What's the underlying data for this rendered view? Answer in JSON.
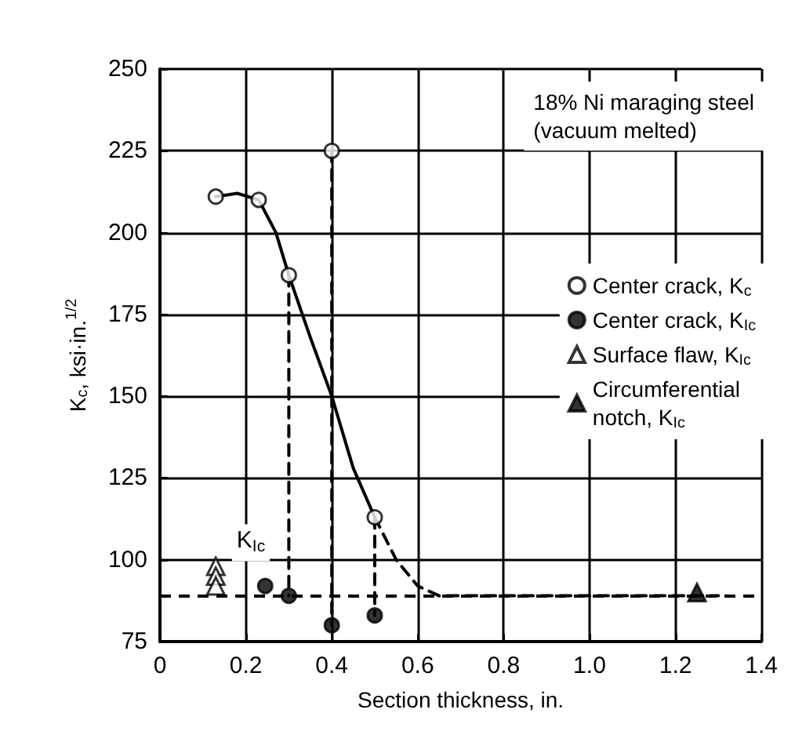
{
  "chart_data": {
    "type": "scatter",
    "title": "18% Ni maraging steel\n(vacuum melted)",
    "xlabel": "Section thickness, in.",
    "ylabel": "K$_{c}$, ksi·in.$^{1/2}$",
    "xlim": [
      0,
      1.4
    ],
    "xticks": [
      0,
      0.2,
      0.4,
      0.6,
      0.8,
      {
        "value": 1,
        "label": "1.0"
      },
      1.2,
      1.4
    ],
    "ylim": [
      75,
      250
    ],
    "yticks": [
      75,
      100,
      125,
      150,
      175,
      200,
      225,
      250
    ],
    "grid": true,
    "legend": "right",
    "annotations": [
      "K$_{Ic}$"
    ],
    "ref_lines": [
      {
        "axis": "y",
        "value": 89,
        "line_style": "dashed",
        "color": "#000000"
      }
    ],
    "series": [
      {
        "name": "Center crack, K$_{c}$",
        "color": "#ffffff",
        "marker": "circle",
        "x": [
          0.13,
          0.23,
          0.3,
          0.4,
          0.5
        ],
        "values": [
          211,
          210,
          187,
          225,
          113
        ]
      },
      {
        "name": "Center crack, K$_{Ic}$",
        "color": "#000000",
        "marker": "circle",
        "x": [
          0.245,
          0.3,
          0.4,
          0.5
        ],
        "values": [
          92,
          89,
          80,
          83
        ]
      },
      {
        "name": "Surface flaw, K$_{Ic}$",
        "color": "#ffffff",
        "marker": "triangle",
        "x": [
          0.13,
          0.13,
          0.13
        ],
        "values": [
          98,
          95,
          92
        ]
      },
      {
        "name": "Circumferential\nnotch, K$_{Ic}$",
        "color": "#000000",
        "marker": "triangle",
        "x": [
          1.25
        ],
        "values": [
          90
        ]
      },
      {
        "type": "line",
        "color": "#000000",
        "marker": "none",
        "line_style": "solid",
        "x": [
          0.13,
          0.18,
          0.23,
          0.27,
          0.3,
          0.35,
          0.4,
          0.45,
          0.5
        ],
        "values": [
          211,
          212,
          210,
          200,
          187,
          168,
          150,
          128,
          113
        ]
      },
      {
        "type": "line",
        "color": "#000000",
        "marker": "none",
        "line_style": "dashed",
        "x": [
          0.5,
          0.55,
          0.6,
          0.65,
          0.7,
          1.3
        ],
        "values": [
          113,
          100,
          92,
          89,
          89,
          89
        ]
      },
      {
        "type": "line",
        "color": "#000000",
        "marker": "none",
        "line_style": "dashed",
        "x": [
          0.3,
          0.3
        ],
        "values": [
          187,
          89
        ]
      },
      {
        "type": "line",
        "color": "#000000",
        "marker": "none",
        "line_style": "dashed",
        "x": [
          0.4,
          0.4
        ],
        "values": [
          225,
          80
        ]
      },
      {
        "type": "line",
        "color": "#000000",
        "marker": "none",
        "line_style": "dashed",
        "x": [
          0.5,
          0.5
        ],
        "values": [
          113,
          83
        ]
      }
    ]
  }
}
